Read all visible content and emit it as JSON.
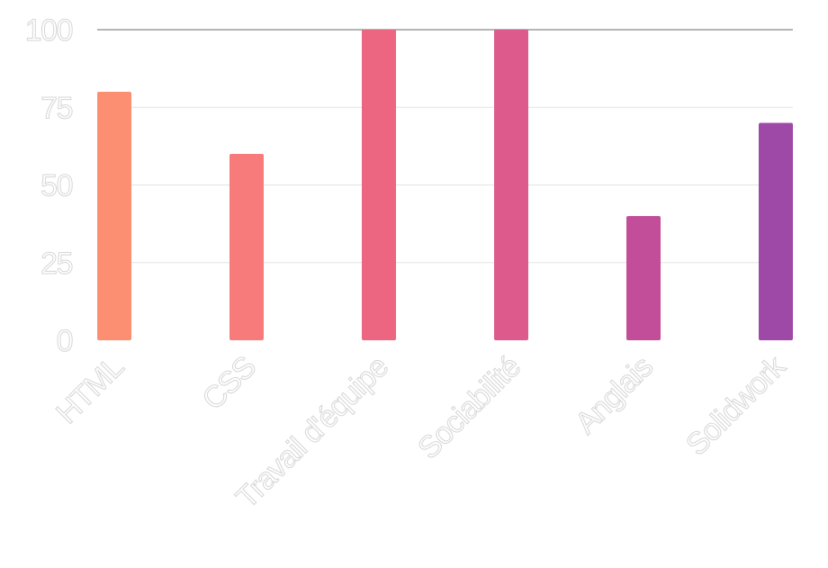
{
  "chart_data": {
    "type": "bar",
    "categories": [
      "HTML",
      "CSS",
      "Travail d'équipe",
      "Sociabilité",
      "Anglais",
      "Solidwork"
    ],
    "values": [
      80,
      60,
      100,
      100,
      40,
      70
    ],
    "ylim": [
      0,
      100
    ],
    "yticks": [
      "0",
      "25",
      "50",
      "75",
      "100"
    ],
    "grid": true,
    "legend": "none",
    "colors": [
      "#fc8f72",
      "#f77b7b",
      "#ec6681",
      "#dd5a8c",
      "#c24e99",
      "#9e49a8"
    ]
  }
}
